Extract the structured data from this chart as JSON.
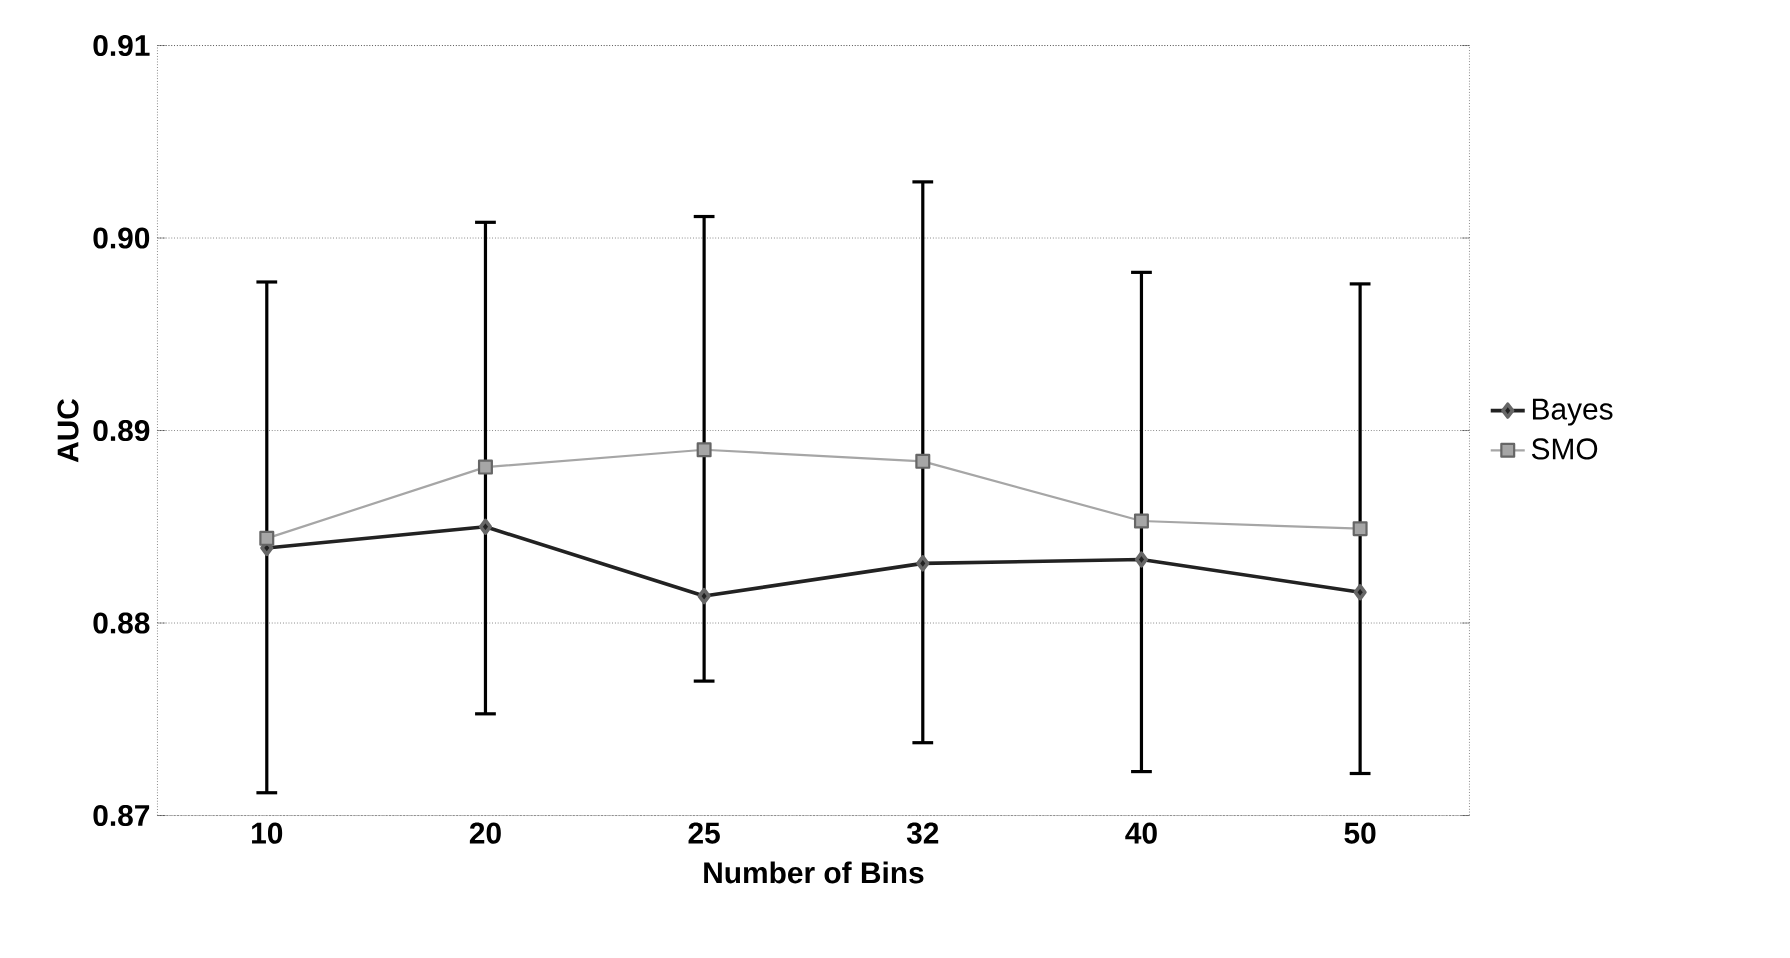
{
  "chart_data": {
    "type": "line",
    "xlabel": "Number of Bins",
    "ylabel": "AUC",
    "categories": [
      "10",
      "20",
      "25",
      "32",
      "40",
      "50"
    ],
    "series": [
      {
        "name": "Bayes",
        "color": "#222222",
        "marker": "diamond",
        "values": [
          0.8839,
          0.885,
          0.8814,
          0.8831,
          0.8833,
          0.8816
        ]
      },
      {
        "name": "SMO",
        "color": "#a6a6a6",
        "marker": "square",
        "values": [
          0.8844,
          0.8881,
          0.889,
          0.8884,
          0.8853,
          0.8849
        ],
        "errors": [
          [
            0.8711,
            0.8978
          ],
          [
            0.8752,
            0.9009
          ],
          [
            0.8769,
            0.9012
          ],
          [
            0.8737,
            0.903
          ],
          [
            0.8722,
            0.8983
          ],
          [
            0.8721,
            0.8977
          ]
        ]
      }
    ],
    "ylim": [
      0.87,
      0.91
    ],
    "yticks": [
      {
        "value": 0.87,
        "label": "0.87"
      },
      {
        "value": 0.88,
        "label": "0.88"
      },
      {
        "value": 0.89,
        "label": "0.89"
      },
      {
        "value": 0.9,
        "label": "0.90"
      },
      {
        "value": 0.91,
        "label": "0.91"
      }
    ],
    "grid": "y",
    "legend": "right",
    "line_style": "solid"
  }
}
